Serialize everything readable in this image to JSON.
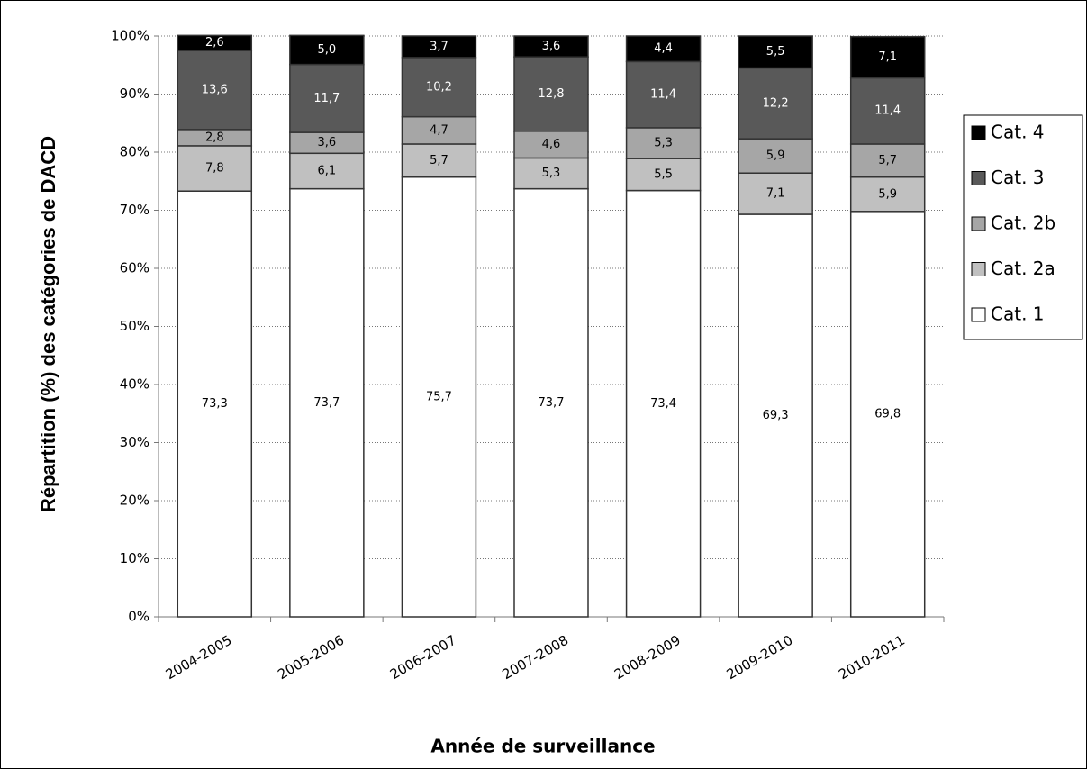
{
  "chart_data": {
    "type": "stacked_bar",
    "x_label": "Année de surveillance",
    "y_label": "Répartition (%) des catégories de DACD",
    "categories": [
      "2004-2005",
      "2005-2006",
      "2006-2007",
      "2007-2008",
      "2008-2009",
      "2009-2010",
      "2010-2011"
    ],
    "series": [
      {
        "name": "Cat. 1",
        "color": "#ffffff",
        "values": [
          73.3,
          73.7,
          75.7,
          73.7,
          73.4,
          69.3,
          69.8
        ],
        "value_labels": [
          "73,3",
          "73,7",
          "75,7",
          "73,7",
          "73,4",
          "69,3",
          "69,8"
        ]
      },
      {
        "name": "Cat. 2a",
        "color": "#c0c0c0",
        "values": [
          7.8,
          6.1,
          5.7,
          5.3,
          5.5,
          7.1,
          5.9
        ],
        "value_labels": [
          "7,8",
          "6,1",
          "5,7",
          "5,3",
          "5,5",
          "7,1",
          "5,9"
        ]
      },
      {
        "name": "Cat. 2b",
        "color": "#a6a6a6",
        "values": [
          2.8,
          3.6,
          4.7,
          4.6,
          5.3,
          5.9,
          5.7
        ],
        "value_labels": [
          "2,8",
          "3,6",
          "4,7",
          "4,6",
          "5,3",
          "5,9",
          "5,7"
        ]
      },
      {
        "name": "Cat. 3",
        "color": "#595959",
        "values": [
          13.6,
          11.7,
          10.2,
          12.8,
          11.4,
          12.2,
          11.4
        ],
        "value_labels": [
          "13,6",
          "11,7",
          "10,2",
          "12,8",
          "11,4",
          "12,2",
          "11,4"
        ]
      },
      {
        "name": "Cat. 4",
        "color": "#000000",
        "values": [
          2.6,
          5.0,
          3.7,
          3.6,
          4.4,
          5.5,
          7.1
        ],
        "value_labels": [
          "2,6",
          "5,0",
          "3,7",
          "3,6",
          "4,4",
          "5,5",
          "7,1"
        ]
      }
    ],
    "ylim": [
      0,
      100
    ],
    "yticks": [
      {
        "value": 0,
        "label": "0%"
      },
      {
        "value": 10,
        "label": "10%"
      },
      {
        "value": 20,
        "label": "20%"
      },
      {
        "value": 30,
        "label": "30%"
      },
      {
        "value": 40,
        "label": "40%"
      },
      {
        "value": 50,
        "label": "50%"
      },
      {
        "value": 60,
        "label": "60%"
      },
      {
        "value": 70,
        "label": "70%"
      },
      {
        "value": 80,
        "label": "80%"
      },
      {
        "value": 90,
        "label": "90%"
      },
      {
        "value": 100,
        "label": "100%"
      }
    ],
    "grid": true,
    "legend": "right"
  }
}
